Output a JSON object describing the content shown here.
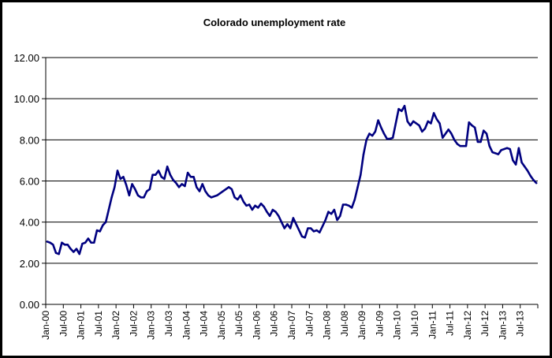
{
  "chart_data": {
    "type": "line",
    "title": "Colorado unemployment rate",
    "xlabel": "",
    "ylabel": "",
    "ylim": [
      0,
      12
    ],
    "yticks": [
      "0.00",
      "2.00",
      "4.00",
      "6.00",
      "8.00",
      "10.00",
      "12.00"
    ],
    "xticks": [
      "Jan-00",
      "Jul-00",
      "Jan-01",
      "Jul-01",
      "Jan-02",
      "Jul-02",
      "Jan-03",
      "Jul-03",
      "Jan-04",
      "Jul-04",
      "Jan-05",
      "Jul-05",
      "Jan-06",
      "Jul-06",
      "Jan-07",
      "Jul-07",
      "Jan-08",
      "Jul-08",
      "Jan-09",
      "Jul-09",
      "Jan-10",
      "Jul-10",
      "Jan-11",
      "Jul-11",
      "Jan-12",
      "Jul-12",
      "Jan-13",
      "Jul-13"
    ],
    "grid": true,
    "legend": "none",
    "line_color": "#000080",
    "series": [
      {
        "start": "Jan-00",
        "frequency": "monthly",
        "values": [
          3.05,
          3.0,
          2.9,
          2.5,
          2.45,
          3.0,
          2.9,
          2.9,
          2.7,
          2.55,
          2.7,
          2.45,
          2.95,
          3.0,
          3.2,
          3.0,
          3.0,
          3.6,
          3.55,
          3.85,
          4.0,
          4.6,
          5.2,
          5.7,
          6.5,
          6.1,
          6.2,
          5.8,
          5.3,
          5.85,
          5.6,
          5.3,
          5.2,
          5.2,
          5.5,
          5.6,
          6.3,
          6.3,
          6.5,
          6.2,
          6.1,
          6.7,
          6.3,
          6.05,
          5.9,
          5.7,
          5.85,
          5.75,
          6.4,
          6.2,
          6.2,
          5.7,
          5.5,
          5.85,
          5.5,
          5.3,
          5.2,
          5.25,
          5.3,
          5.4,
          5.5,
          5.6,
          5.7,
          5.6,
          5.2,
          5.1,
          5.3,
          5.0,
          4.8,
          4.85,
          4.6,
          4.8,
          4.7,
          4.9,
          4.75,
          4.5,
          4.3,
          4.6,
          4.5,
          4.3,
          4.0,
          3.7,
          3.9,
          3.7,
          4.2,
          3.9,
          3.6,
          3.3,
          3.25,
          3.7,
          3.7,
          3.55,
          3.6,
          3.5,
          3.8,
          4.1,
          4.5,
          4.4,
          4.6,
          4.1,
          4.3,
          4.85,
          4.85,
          4.8,
          4.7,
          5.1,
          5.7,
          6.3,
          7.3,
          8.0,
          8.3,
          8.2,
          8.4,
          8.95,
          8.6,
          8.3,
          8.05,
          8.05,
          8.1,
          8.8,
          9.5,
          9.4,
          9.65,
          8.9,
          8.7,
          8.9,
          8.8,
          8.7,
          8.4,
          8.55,
          8.9,
          8.8,
          9.3,
          9.0,
          8.8,
          8.1,
          8.3,
          8.5,
          8.3,
          8.0,
          7.8,
          7.7,
          7.7,
          7.7,
          8.85,
          8.7,
          8.6,
          7.9,
          7.9,
          8.45,
          8.3,
          7.7,
          7.4,
          7.35,
          7.3,
          7.5,
          7.55,
          7.6,
          7.55,
          7.0,
          6.8,
          7.6,
          6.9,
          6.7,
          6.5,
          6.25,
          6.05,
          5.9
        ]
      }
    ]
  }
}
